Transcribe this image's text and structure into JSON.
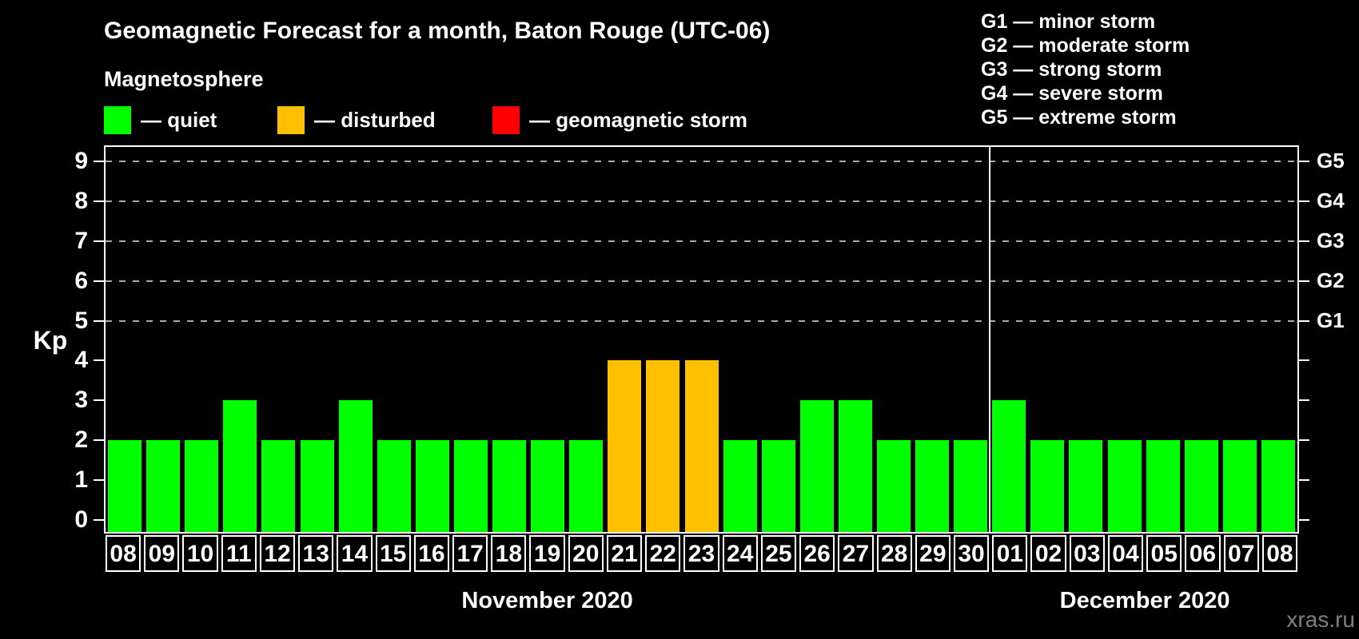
{
  "title": "Geomagnetic Forecast for a month, Baton Rouge (UTC-06)",
  "subtitle": "Magnetosphere",
  "legend": {
    "quiet": "— quiet",
    "disturbed": "— disturbed",
    "storm": "— geomagnetic storm"
  },
  "g_legend": [
    "G1 — minor storm",
    "G2 — moderate storm",
    "G3 — strong storm",
    "G4 — severe storm",
    "G5 — extreme storm"
  ],
  "watermark": "xras.ru",
  "colors": {
    "quiet": "#00ff00",
    "disturbed": "#ffc000",
    "storm": "#ff0000",
    "axis": "#ffffff",
    "grid": "#aaaaaa",
    "background": "#000000",
    "watermark": "#808080"
  },
  "chart_data": {
    "type": "bar",
    "title": "Geomagnetic Forecast for a month, Baton Rouge (UTC-06)",
    "ylabel": "Kp",
    "ylim": [
      0,
      9
    ],
    "y_ticks": [
      0,
      1,
      2,
      3,
      4,
      5,
      6,
      7,
      8,
      9
    ],
    "gridlines_at": [
      5,
      6,
      7,
      8,
      9
    ],
    "grid": "dashed horizontal lines at storm levels only",
    "legend_position": "top-left and top-right",
    "right_axis_labels": [
      {
        "value": 5,
        "label": "G1"
      },
      {
        "value": 6,
        "label": "G2"
      },
      {
        "value": 7,
        "label": "G3"
      },
      {
        "value": 8,
        "label": "G4"
      },
      {
        "value": 9,
        "label": "G5"
      }
    ],
    "months": [
      {
        "label": "November 2020",
        "days": 23
      },
      {
        "label": "December 2020",
        "days": 8
      }
    ],
    "bars": [
      {
        "date": "08",
        "kp": 2,
        "state": "quiet"
      },
      {
        "date": "09",
        "kp": 2,
        "state": "quiet"
      },
      {
        "date": "10",
        "kp": 2,
        "state": "quiet"
      },
      {
        "date": "11",
        "kp": 3,
        "state": "quiet"
      },
      {
        "date": "12",
        "kp": 2,
        "state": "quiet"
      },
      {
        "date": "13",
        "kp": 2,
        "state": "quiet"
      },
      {
        "date": "14",
        "kp": 3,
        "state": "quiet"
      },
      {
        "date": "15",
        "kp": 2,
        "state": "quiet"
      },
      {
        "date": "16",
        "kp": 2,
        "state": "quiet"
      },
      {
        "date": "17",
        "kp": 2,
        "state": "quiet"
      },
      {
        "date": "18",
        "kp": 2,
        "state": "quiet"
      },
      {
        "date": "19",
        "kp": 2,
        "state": "quiet"
      },
      {
        "date": "20",
        "kp": 2,
        "state": "quiet"
      },
      {
        "date": "21",
        "kp": 4,
        "state": "disturbed"
      },
      {
        "date": "22",
        "kp": 4,
        "state": "disturbed"
      },
      {
        "date": "23",
        "kp": 4,
        "state": "disturbed"
      },
      {
        "date": "24",
        "kp": 2,
        "state": "quiet"
      },
      {
        "date": "25",
        "kp": 2,
        "state": "quiet"
      },
      {
        "date": "26",
        "kp": 3,
        "state": "quiet"
      },
      {
        "date": "27",
        "kp": 3,
        "state": "quiet"
      },
      {
        "date": "28",
        "kp": 2,
        "state": "quiet"
      },
      {
        "date": "29",
        "kp": 2,
        "state": "quiet"
      },
      {
        "date": "30",
        "kp": 2,
        "state": "quiet"
      },
      {
        "date": "01",
        "kp": 3,
        "state": "quiet"
      },
      {
        "date": "02",
        "kp": 2,
        "state": "quiet"
      },
      {
        "date": "03",
        "kp": 2,
        "state": "quiet"
      },
      {
        "date": "04",
        "kp": 2,
        "state": "quiet"
      },
      {
        "date": "05",
        "kp": 2,
        "state": "quiet"
      },
      {
        "date": "06",
        "kp": 2,
        "state": "quiet"
      },
      {
        "date": "07",
        "kp": 2,
        "state": "quiet"
      },
      {
        "date": "08",
        "kp": 2,
        "state": "quiet"
      }
    ]
  }
}
